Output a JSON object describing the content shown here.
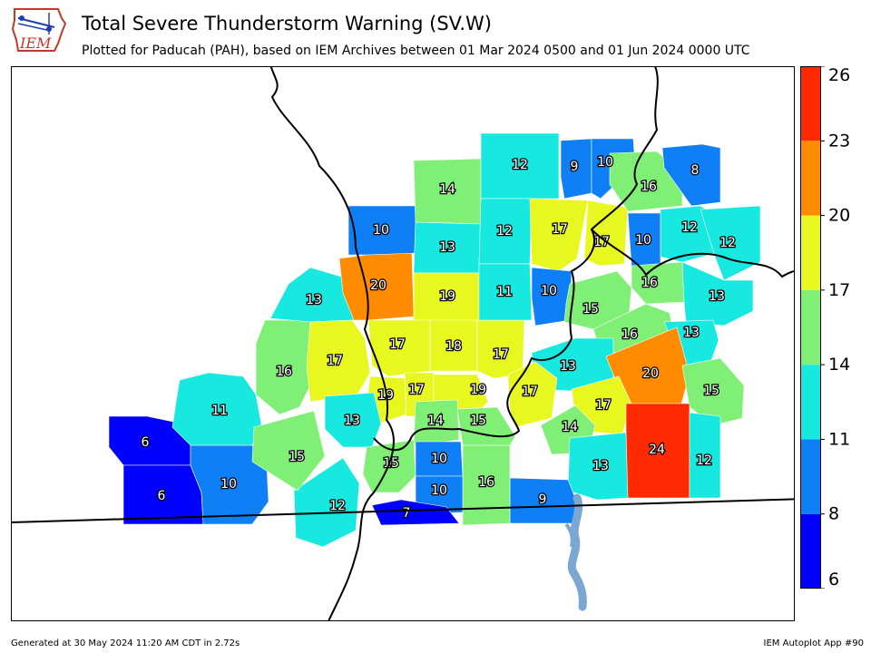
{
  "header": {
    "logo_text": "IEM",
    "title": "Total Severe Thunderstorm Warning (SV.W)",
    "subtitle": "Plotted for Paducah (PAH), based on IEM Archives  between 01 Mar 2024 0500 and 01 Jun 2024 0000 UTC"
  },
  "footer": {
    "generated": "Generated at 30 May 2024 11:20 AM CDT in 2.72s",
    "app": "IEM Autoplot App #90"
  },
  "colorbar": {
    "ticks": [
      "6",
      "8",
      "11",
      "14",
      "17",
      "20",
      "23",
      "26"
    ],
    "bins": [
      {
        "from": 6,
        "to": 8,
        "color": "#0000ff"
      },
      {
        "from": 8,
        "to": 11,
        "color": "#0e7ff5"
      },
      {
        "from": 11,
        "to": 14,
        "color": "#17e8e0"
      },
      {
        "from": 14,
        "to": 17,
        "color": "#7fef75"
      },
      {
        "from": 17,
        "to": 20,
        "color": "#e9f721"
      },
      {
        "from": 20,
        "to": 23,
        "color": "#ff8c00"
      },
      {
        "from": 23,
        "to": 26,
        "color": "#ff2a00"
      }
    ]
  },
  "map": {
    "land_color": "#ffffff",
    "river_color": "#7ba7d3",
    "counties": [
      {
        "value": 6
      },
      {
        "value": 6
      },
      {
        "value": 10
      },
      {
        "value": 11
      },
      {
        "value": 16
      },
      {
        "value": 13
      },
      {
        "value": 17
      },
      {
        "value": 20
      },
      {
        "value": 10
      },
      {
        "value": 14
      },
      {
        "value": 13
      },
      {
        "value": 19
      },
      {
        "value": 17
      },
      {
        "value": 18
      },
      {
        "value": 17
      },
      {
        "value": 12
      },
      {
        "value": 12
      },
      {
        "value": 11
      },
      {
        "value": 9
      },
      {
        "value": 10
      },
      {
        "value": 17
      },
      {
        "value": 17
      },
      {
        "value": 10
      },
      {
        "value": 10
      },
      {
        "value": 16
      },
      {
        "value": 8
      },
      {
        "value": 12
      },
      {
        "value": 12
      },
      {
        "value": 16
      },
      {
        "value": 15
      },
      {
        "value": 13
      },
      {
        "value": 16
      },
      {
        "value": 13
      },
      {
        "value": 13
      },
      {
        "value": 20
      },
      {
        "value": 15
      },
      {
        "value": 17
      },
      {
        "value": 17
      },
      {
        "value": 14
      },
      {
        "value": 24
      },
      {
        "value": 12
      },
      {
        "value": 13
      },
      {
        "value": 9
      },
      {
        "value": 16
      },
      {
        "value": 19
      },
      {
        "value": 17
      },
      {
        "value": 19
      },
      {
        "value": 13
      },
      {
        "value": 14
      },
      {
        "value": 15
      },
      {
        "value": 15
      },
      {
        "value": 10
      },
      {
        "value": 10
      },
      {
        "value": 7
      },
      {
        "value": 12
      },
      {
        "value": 15
      }
    ]
  }
}
